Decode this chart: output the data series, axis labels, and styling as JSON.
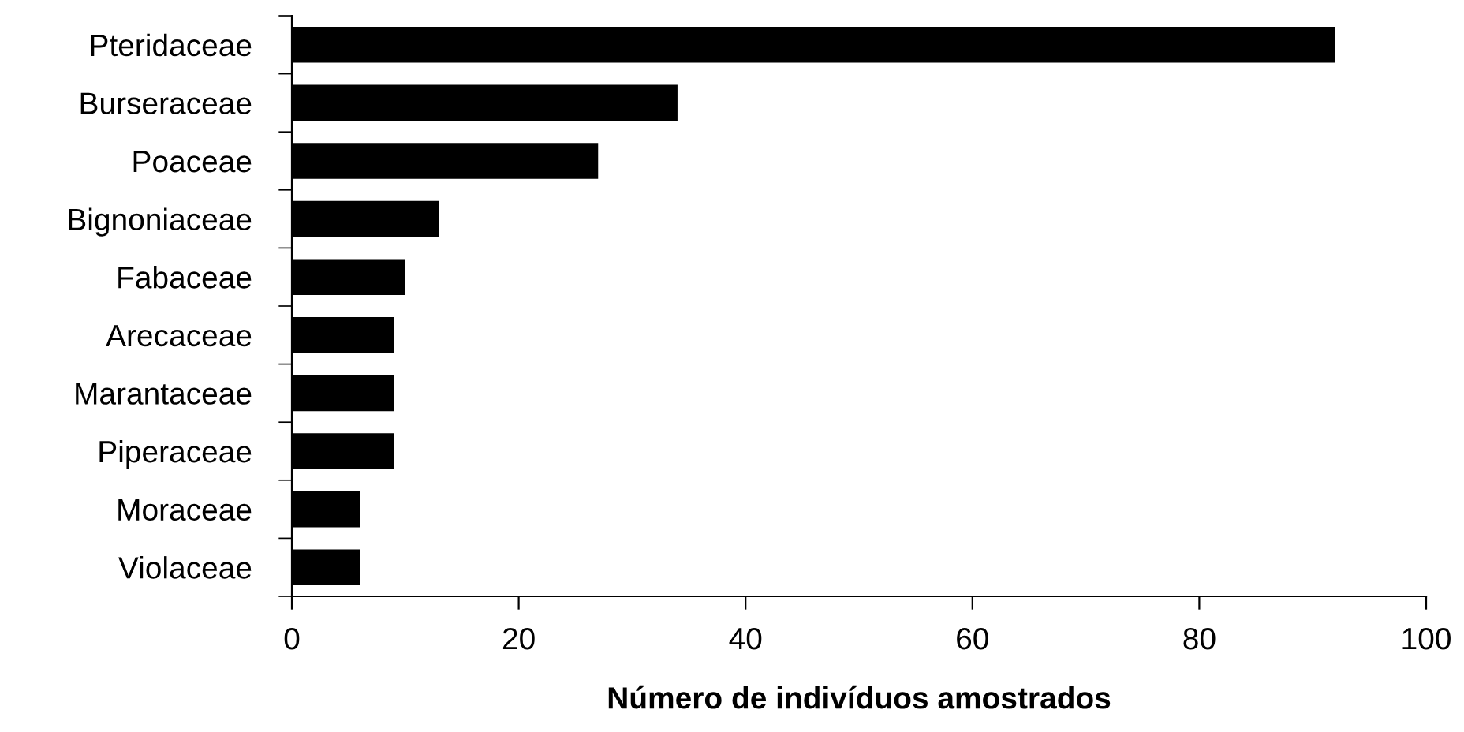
{
  "chart_data": {
    "type": "bar",
    "orientation": "horizontal",
    "xlabel": "Número de indivíduos amostrados",
    "categories": [
      "Pteridaceae",
      "Burseraceae",
      "Poaceae",
      "Bignoniaceae",
      "Fabaceae",
      "Arecaceae",
      "Marantaceae",
      "Piperaceae",
      "Moraceae",
      "Violaceae"
    ],
    "values": [
      92,
      34,
      27,
      13,
      10,
      9,
      9,
      9,
      6,
      6
    ],
    "color": "#000000",
    "xlim": [
      0,
      100
    ],
    "xticks": [
      0,
      20,
      40,
      60,
      80,
      100
    ],
    "grid": false,
    "legend": false
  }
}
